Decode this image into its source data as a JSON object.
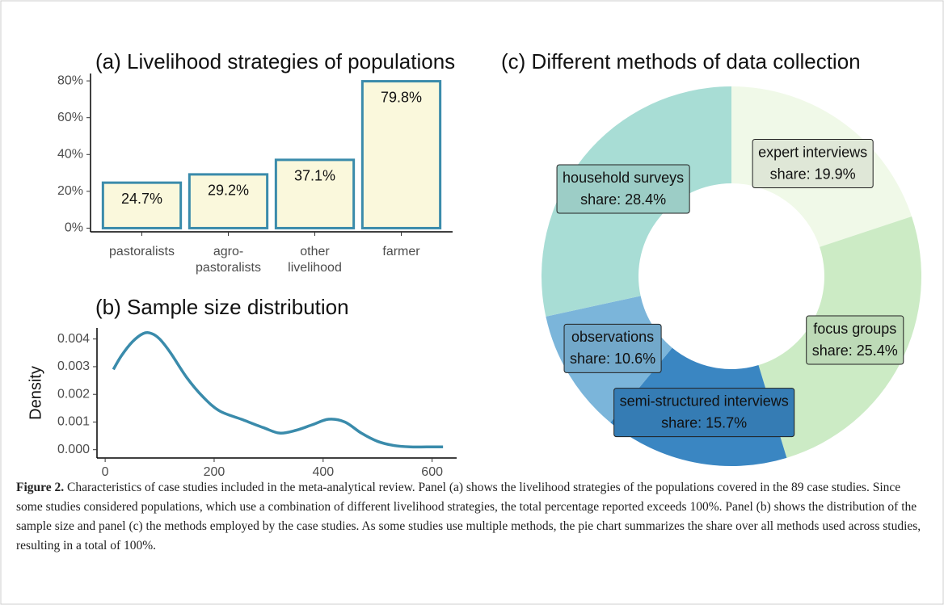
{
  "chart_data": [
    {
      "type": "bar",
      "title": "(a) Livelihood strategies of populations",
      "categories": [
        [
          "pastoralists"
        ],
        [
          "agro-",
          "pastoralists"
        ],
        [
          "other",
          "livelihood"
        ],
        [
          "farmer"
        ]
      ],
      "values": [
        24.7,
        29.2,
        37.1,
        79.8
      ],
      "value_labels": [
        "24.7%",
        "29.2%",
        "37.1%",
        "79.8%"
      ],
      "color": "#faf8dc",
      "edge_color": "#3a8bab",
      "ylim": [
        -2,
        84
      ],
      "yticks": [
        {
          "value": 0,
          "label": "0%"
        },
        {
          "value": 20,
          "label": "20%"
        },
        {
          "value": 40,
          "label": "40%"
        },
        {
          "value": 60,
          "label": "60%"
        },
        {
          "value": 80,
          "label": "80%"
        }
      ]
    },
    {
      "type": "line",
      "title": "(b) Sample size distribution",
      "ylabel": "Density",
      "x": [
        15,
        30,
        50,
        70,
        85,
        100,
        120,
        150,
        180,
        210,
        250,
        290,
        320,
        350,
        380,
        410,
        440,
        470,
        500,
        530,
        560,
        590,
        620
      ],
      "values": [
        0.0029,
        0.0034,
        0.0039,
        0.0042,
        0.0042,
        0.004,
        0.0035,
        0.0026,
        0.0019,
        0.0014,
        0.0011,
        0.0008,
        0.0006,
        0.0007,
        0.0009,
        0.0011,
        0.001,
        0.0006,
        0.0003,
        0.00015,
        0.0001,
        0.0001,
        0.0001
      ],
      "color": "#3a8bab",
      "xlim": [
        -15,
        645
      ],
      "ylim": [
        -0.0003,
        0.0044
      ],
      "xticks": [
        0,
        200,
        400,
        600
      ],
      "yticks": [
        {
          "value": 0,
          "label": "0.000"
        },
        {
          "value": 0.001,
          "label": "0.001"
        },
        {
          "value": 0.002,
          "label": "0.002"
        },
        {
          "value": 0.003,
          "label": "0.003"
        },
        {
          "value": 0.004,
          "label": "0.004"
        }
      ]
    },
    {
      "type": "donut",
      "title": "(c) Different methods of data collection",
      "categories": [
        "expert interviews",
        "focus groups",
        "semi-structured interviews",
        "observations",
        "household surveys"
      ],
      "values": [
        19.9,
        25.4,
        15.7,
        10.6,
        28.4
      ],
      "value_labels": [
        "share: 19.9%",
        "share: 25.4%",
        "share: 15.7%",
        "share: 10.6%",
        "share: 28.4%"
      ],
      "colors": [
        "#f0f9e8",
        "#ccebc5",
        "#3a86c2",
        "#7bb5da",
        "#a8ddd5"
      ]
    }
  ],
  "caption": {
    "label": "Figure 2.",
    "text": "Characteristics of case studies included in the meta-analytical review. Panel (a) shows the livelihood strategies of the populations covered in the 89 case studies. Since some studies considered populations, which use a combination of different livelihood strategies, the total percentage reported exceeds 100%. Panel (b) shows the distribution of the sample size and panel (c) the methods employed by the case studies. As some studies use multiple methods, the pie chart summarizes the share over all methods used across studies, resulting in a total of 100%."
  }
}
